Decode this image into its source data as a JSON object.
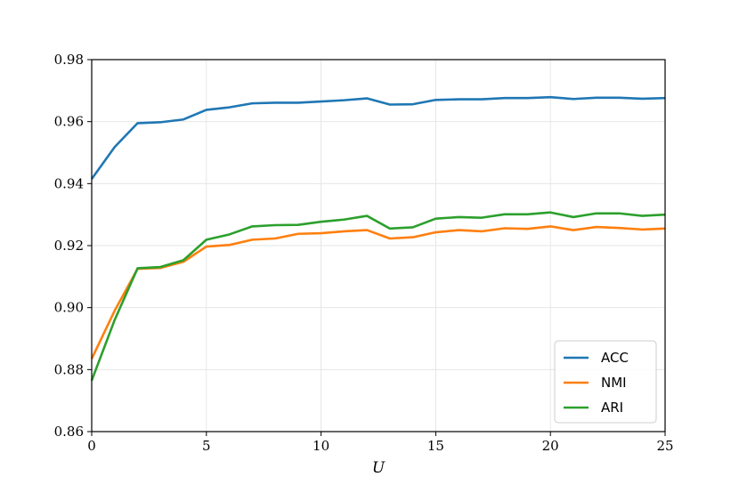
{
  "chart_data": {
    "type": "line",
    "xlabel": "U",
    "ylabel": "",
    "xlim": [
      0,
      25
    ],
    "ylim": [
      0.86,
      0.98
    ],
    "x_ticks": [
      0,
      5,
      10,
      15,
      20,
      25
    ],
    "x_tick_labels": [
      "0",
      "5",
      "10",
      "15",
      "20",
      "25"
    ],
    "y_ticks": [
      0.86,
      0.88,
      0.9,
      0.92,
      0.94,
      0.96,
      0.98
    ],
    "y_tick_labels": [
      "0.86",
      "0.88",
      "0.90",
      "0.92",
      "0.94",
      "0.96",
      "0.98"
    ],
    "grid": true,
    "legend_position": "bottom-right",
    "x": [
      0,
      1,
      2,
      3,
      4,
      5,
      6,
      7,
      8,
      9,
      10,
      11,
      12,
      13,
      14,
      15,
      16,
      17,
      18,
      19,
      20,
      21,
      22,
      23,
      24,
      25
    ],
    "series": [
      {
        "name": "ACC",
        "color": "#1f77b4",
        "values": [
          0.9415,
          0.9518,
          0.9595,
          0.9598,
          0.9607,
          0.9638,
          0.9646,
          0.9659,
          0.9661,
          0.9661,
          0.9665,
          0.9669,
          0.9675,
          0.9655,
          0.9656,
          0.967,
          0.9672,
          0.9672,
          0.9676,
          0.9676,
          0.9679,
          0.9673,
          0.9677,
          0.9677,
          0.9674,
          0.9676
        ]
      },
      {
        "name": "NMI",
        "color": "#ff7f0e",
        "values": [
          0.8835,
          0.899,
          0.9125,
          0.9128,
          0.9148,
          0.9197,
          0.9202,
          0.9219,
          0.9223,
          0.9238,
          0.924,
          0.9246,
          0.925,
          0.9223,
          0.9227,
          0.9243,
          0.925,
          0.9246,
          0.9256,
          0.9254,
          0.9262,
          0.925,
          0.926,
          0.9257,
          0.9252,
          0.9255
        ]
      },
      {
        "name": "ARI",
        "color": "#2ca02c",
        "values": [
          0.8765,
          0.896,
          0.9127,
          0.9131,
          0.9153,
          0.9219,
          0.9236,
          0.9262,
          0.9266,
          0.9267,
          0.9277,
          0.9284,
          0.9296,
          0.9255,
          0.9259,
          0.9287,
          0.9292,
          0.929,
          0.9301,
          0.9301,
          0.9307,
          0.9292,
          0.9304,
          0.9304,
          0.9296,
          0.93
        ]
      }
    ]
  }
}
